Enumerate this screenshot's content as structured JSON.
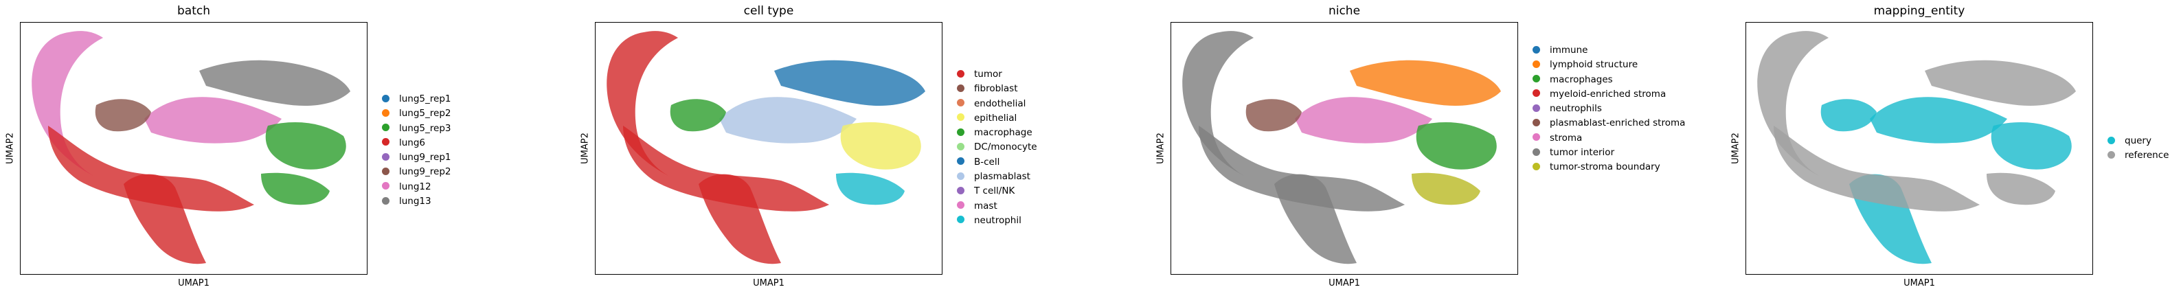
{
  "chart_data": [
    {
      "type": "scatter",
      "title": "batch",
      "xlabel": "UMAP1",
      "ylabel": "UMAP2",
      "legend_placement": "right",
      "legend": [
        {
          "label": "lung5_rep1",
          "color": "#1f77b4"
        },
        {
          "label": "lung5_rep2",
          "color": "#ff7f0e"
        },
        {
          "label": "lung5_rep3",
          "color": "#2ca02c"
        },
        {
          "label": "lung6",
          "color": "#d62728"
        },
        {
          "label": "lung9_rep1",
          "color": "#9467bd"
        },
        {
          "label": "lung9_rep2",
          "color": "#8c564b"
        },
        {
          "label": "lung12",
          "color": "#e377c2"
        },
        {
          "label": "lung13",
          "color": "#7f7f7f"
        }
      ]
    },
    {
      "type": "scatter",
      "title": "cell type",
      "xlabel": "UMAP1",
      "ylabel": "UMAP2",
      "legend_placement": "right",
      "legend": [
        {
          "label": "tumor",
          "color": "#d62728"
        },
        {
          "label": "fibroblast",
          "color": "#8c564b"
        },
        {
          "label": "endothelial",
          "color": "#e07b54"
        },
        {
          "label": "epithelial",
          "color": "#f5f062"
        },
        {
          "label": "macrophage",
          "color": "#2ca02c"
        },
        {
          "label": "DC/monocyte",
          "color": "#98df8a"
        },
        {
          "label": "B-cell",
          "color": "#1f77b4"
        },
        {
          "label": "plasmablast",
          "color": "#aec7e8"
        },
        {
          "label": "T cell/NK",
          "color": "#9467bd"
        },
        {
          "label": "mast",
          "color": "#e377c2"
        },
        {
          "label": "neutrophil",
          "color": "#17becf"
        }
      ]
    },
    {
      "type": "scatter",
      "title": "niche",
      "xlabel": "UMAP1",
      "ylabel": "UMAP2",
      "legend_placement": "right",
      "legend": [
        {
          "label": "immune",
          "color": "#1f77b4"
        },
        {
          "label": "lymphoid structure",
          "color": "#ff7f0e"
        },
        {
          "label": "macrophages",
          "color": "#2ca02c"
        },
        {
          "label": "myeloid-enriched stroma",
          "color": "#d62728"
        },
        {
          "label": "neutrophils",
          "color": "#9467bd"
        },
        {
          "label": "plasmablast-enriched stroma",
          "color": "#8c564b"
        },
        {
          "label": "stroma",
          "color": "#e377c2"
        },
        {
          "label": "tumor interior",
          "color": "#7f7f7f"
        },
        {
          "label": "tumor-stroma boundary",
          "color": "#bcbd22"
        }
      ]
    },
    {
      "type": "scatter",
      "title": "mapping_entity",
      "xlabel": "UMAP1",
      "ylabel": "UMAP2",
      "legend_placement": "right",
      "legend": [
        {
          "label": "query",
          "color": "#17becf"
        },
        {
          "label": "reference",
          "color": "#a0a0a0"
        }
      ]
    }
  ]
}
